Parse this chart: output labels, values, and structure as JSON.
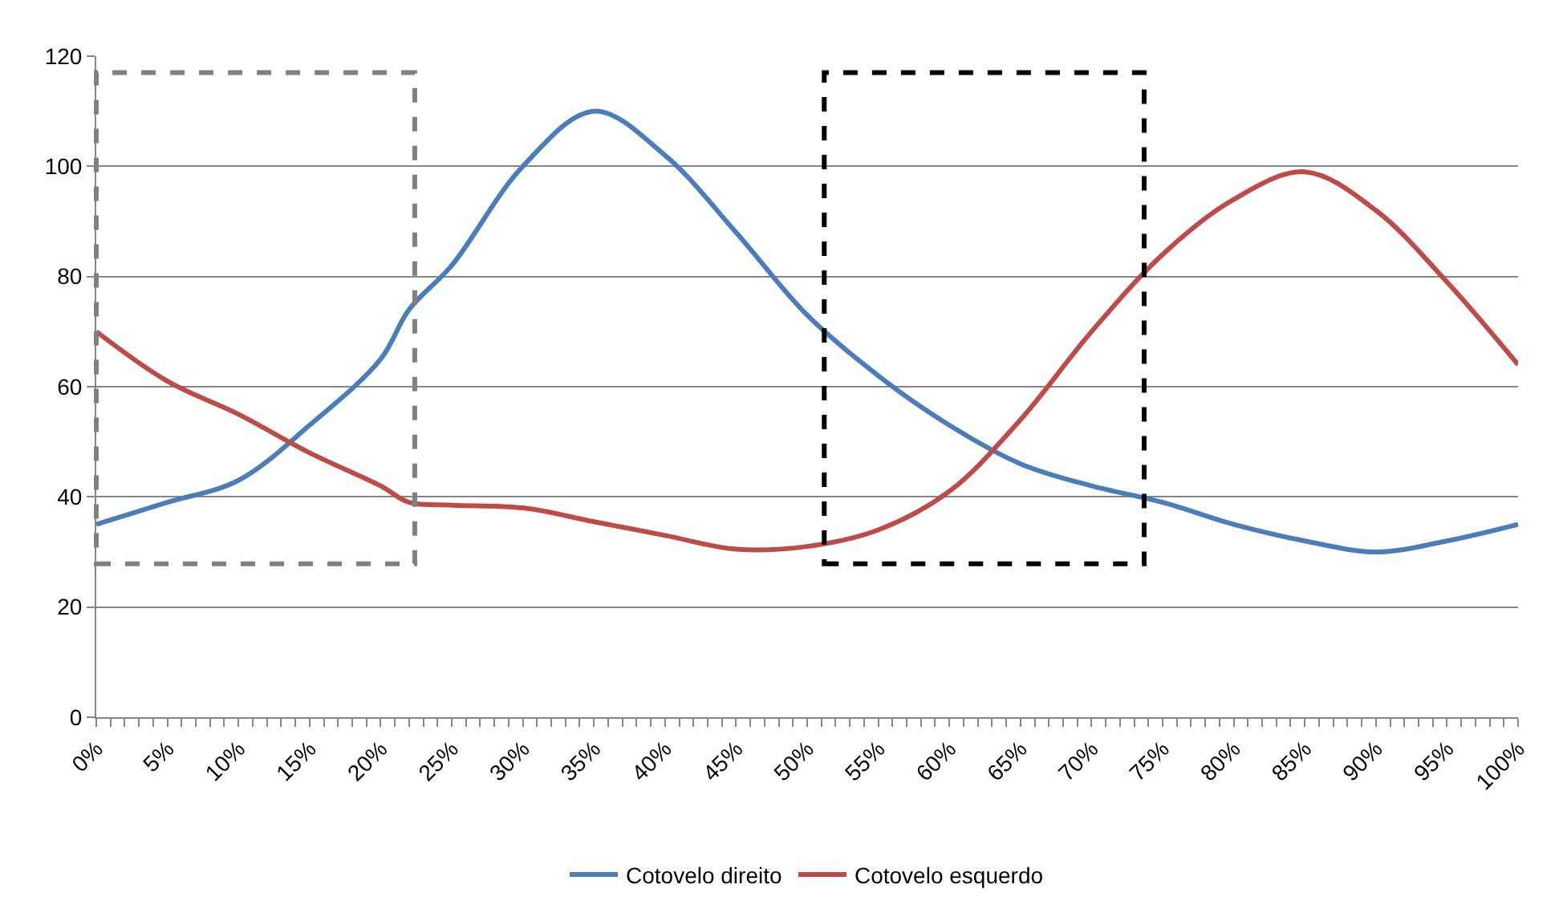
{
  "chart_data": {
    "type": "line",
    "x": [
      0,
      5,
      10,
      15,
      20,
      22,
      25,
      30,
      35,
      40,
      45,
      50,
      55,
      60,
      65,
      70,
      75,
      80,
      85,
      90,
      95,
      100
    ],
    "series": [
      {
        "name": "Cotovelo direito",
        "color": "#4a7ebb",
        "values": [
          35,
          39,
          43,
          53,
          65,
          74,
          82,
          100,
          110,
          102,
          88,
          73,
          62,
          53,
          46,
          42,
          39,
          35,
          32,
          30,
          32,
          35
        ]
      },
      {
        "name": "Cotovelo esquerdo",
        "color": "#be4b48",
        "values": [
          70,
          61,
          55,
          48,
          42,
          39,
          38.5,
          38,
          35.5,
          33,
          30.5,
          31,
          34,
          41,
          54,
          70,
          84,
          94,
          99,
          92,
          79,
          64
        ]
      }
    ],
    "xlim": [
      0,
      100
    ],
    "xticks": [
      {
        "value": 0,
        "label": "0%"
      },
      {
        "value": 1,
        "label": null
      },
      {
        "value": 2,
        "label": null
      },
      {
        "value": 3,
        "label": null
      },
      {
        "value": 4,
        "label": null
      },
      {
        "value": 5,
        "label": "5%"
      },
      {
        "value": 6,
        "label": null
      },
      {
        "value": 7,
        "label": null
      },
      {
        "value": 8,
        "label": null
      },
      {
        "value": 9,
        "label": null
      },
      {
        "value": 10,
        "label": "10%"
      },
      {
        "value": 11,
        "label": null
      },
      {
        "value": 12,
        "label": null
      },
      {
        "value": 13,
        "label": null
      },
      {
        "value": 14,
        "label": null
      },
      {
        "value": 15,
        "label": "15%"
      },
      {
        "value": 16,
        "label": null
      },
      {
        "value": 17,
        "label": null
      },
      {
        "value": 18,
        "label": null
      },
      {
        "value": 19,
        "label": null
      },
      {
        "value": 20,
        "label": "20%"
      },
      {
        "value": 21,
        "label": null
      },
      {
        "value": 22,
        "label": null
      },
      {
        "value": 23,
        "label": null
      },
      {
        "value": 24,
        "label": null
      },
      {
        "value": 25,
        "label": "25%"
      },
      {
        "value": 26,
        "label": null
      },
      {
        "value": 27,
        "label": null
      },
      {
        "value": 28,
        "label": null
      },
      {
        "value": 29,
        "label": null
      },
      {
        "value": 30,
        "label": "30%"
      },
      {
        "value": 31,
        "label": null
      },
      {
        "value": 32,
        "label": null
      },
      {
        "value": 33,
        "label": null
      },
      {
        "value": 34,
        "label": null
      },
      {
        "value": 35,
        "label": "35%"
      },
      {
        "value": 36,
        "label": null
      },
      {
        "value": 37,
        "label": null
      },
      {
        "value": 38,
        "label": null
      },
      {
        "value": 39,
        "label": null
      },
      {
        "value": 40,
        "label": "40%"
      },
      {
        "value": 41,
        "label": null
      },
      {
        "value": 42,
        "label": null
      },
      {
        "value": 43,
        "label": null
      },
      {
        "value": 44,
        "label": null
      },
      {
        "value": 45,
        "label": "45%"
      },
      {
        "value": 46,
        "label": null
      },
      {
        "value": 47,
        "label": null
      },
      {
        "value": 48,
        "label": null
      },
      {
        "value": 49,
        "label": null
      },
      {
        "value": 50,
        "label": "50%"
      },
      {
        "value": 51,
        "label": null
      },
      {
        "value": 52,
        "label": null
      },
      {
        "value": 53,
        "label": null
      },
      {
        "value": 54,
        "label": null
      },
      {
        "value": 55,
        "label": "55%"
      },
      {
        "value": 56,
        "label": null
      },
      {
        "value": 57,
        "label": null
      },
      {
        "value": 58,
        "label": null
      },
      {
        "value": 59,
        "label": null
      },
      {
        "value": 60,
        "label": "60%"
      },
      {
        "value": 61,
        "label": null
      },
      {
        "value": 62,
        "label": null
      },
      {
        "value": 63,
        "label": null
      },
      {
        "value": 64,
        "label": null
      },
      {
        "value": 65,
        "label": "65%"
      },
      {
        "value": 66,
        "label": null
      },
      {
        "value": 67,
        "label": null
      },
      {
        "value": 68,
        "label": null
      },
      {
        "value": 69,
        "label": null
      },
      {
        "value": 70,
        "label": "70%"
      },
      {
        "value": 71,
        "label": null
      },
      {
        "value": 72,
        "label": null
      },
      {
        "value": 73,
        "label": null
      },
      {
        "value": 74,
        "label": null
      },
      {
        "value": 75,
        "label": "75%"
      },
      {
        "value": 76,
        "label": null
      },
      {
        "value": 77,
        "label": null
      },
      {
        "value": 78,
        "label": null
      },
      {
        "value": 79,
        "label": null
      },
      {
        "value": 80,
        "label": "80%"
      },
      {
        "value": 81,
        "label": null
      },
      {
        "value": 82,
        "label": null
      },
      {
        "value": 83,
        "label": null
      },
      {
        "value": 84,
        "label": null
      },
      {
        "value": 85,
        "label": "85%"
      },
      {
        "value": 86,
        "label": null
      },
      {
        "value": 87,
        "label": null
      },
      {
        "value": 88,
        "label": null
      },
      {
        "value": 89,
        "label": null
      },
      {
        "value": 90,
        "label": "90%"
      },
      {
        "value": 91,
        "label": null
      },
      {
        "value": 92,
        "label": null
      },
      {
        "value": 93,
        "label": null
      },
      {
        "value": 94,
        "label": null
      },
      {
        "value": 95,
        "label": "95%"
      },
      {
        "value": 96,
        "label": null
      },
      {
        "value": 97,
        "label": null
      },
      {
        "value": 98,
        "label": null
      },
      {
        "value": 99,
        "label": null
      },
      {
        "value": 100,
        "label": "100%"
      }
    ],
    "ylim": [
      0,
      120
    ],
    "yticks": [
      0,
      20,
      40,
      60,
      80,
      100,
      120
    ],
    "grid": "y",
    "legend": "bottom",
    "marker": "none",
    "line_style": "solid"
  }
}
